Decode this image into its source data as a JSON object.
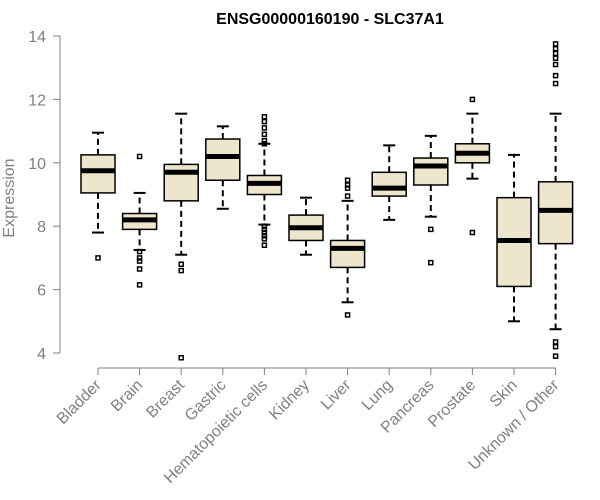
{
  "chart_data": {
    "type": "boxplot",
    "title": "ENSG00000160190 - SLC37A1",
    "xlabel": "",
    "ylabel": "Expression",
    "ylim": [
      3.7,
      14.2
    ],
    "yticks": [
      4,
      6,
      8,
      10,
      12,
      14
    ],
    "categories": [
      "Bladder",
      "Brain",
      "Breast",
      "Gastric",
      "Hematopoietic cells",
      "Kidney",
      "Liver",
      "Lung",
      "Pancreas",
      "Prostate",
      "Skin",
      "Unknown / Other"
    ],
    "series": [
      {
        "name": "Bladder",
        "q1": 9.05,
        "median": 9.75,
        "q3": 10.25,
        "whisker_low": 7.8,
        "whisker_high": 10.95,
        "outliers": [
          7.0
        ]
      },
      {
        "name": "Brain",
        "q1": 7.9,
        "median": 8.2,
        "q3": 8.4,
        "whisker_low": 7.25,
        "whisker_high": 9.05,
        "outliers": [
          10.2,
          7.2,
          7.0,
          6.9,
          6.65,
          6.15
        ]
      },
      {
        "name": "Breast",
        "q1": 8.8,
        "median": 9.7,
        "q3": 9.95,
        "whisker_low": 7.1,
        "whisker_high": 11.55,
        "outliers": [
          6.8,
          6.6,
          3.85
        ]
      },
      {
        "name": "Gastric",
        "q1": 9.45,
        "median": 10.2,
        "q3": 10.75,
        "whisker_low": 8.55,
        "whisker_high": 11.15,
        "outliers": []
      },
      {
        "name": "Hematopoietic cells",
        "q1": 9.0,
        "median": 9.35,
        "q3": 9.6,
        "whisker_low": 8.05,
        "whisker_high": 10.6,
        "outliers": [
          11.45,
          11.3,
          11.1,
          10.9,
          10.7,
          10.6,
          8.0,
          7.9,
          7.8,
          7.7,
          7.6,
          7.4
        ]
      },
      {
        "name": "Kidney",
        "q1": 7.55,
        "median": 7.95,
        "q3": 8.35,
        "whisker_low": 7.1,
        "whisker_high": 8.9,
        "outliers": []
      },
      {
        "name": "Liver",
        "q1": 6.7,
        "median": 7.3,
        "q3": 7.55,
        "whisker_low": 5.6,
        "whisker_high": 8.8,
        "outliers": [
          9.45,
          9.3,
          9.2,
          8.95,
          5.2
        ]
      },
      {
        "name": "Lung",
        "q1": 8.95,
        "median": 9.2,
        "q3": 9.7,
        "whisker_low": 8.2,
        "whisker_high": 10.55,
        "outliers": []
      },
      {
        "name": "Pancreas",
        "q1": 9.3,
        "median": 9.9,
        "q3": 10.15,
        "whisker_low": 8.3,
        "whisker_high": 10.85,
        "outliers": [
          7.9,
          6.85
        ]
      },
      {
        "name": "Prostate",
        "q1": 10.0,
        "median": 10.3,
        "q3": 10.6,
        "whisker_low": 9.5,
        "whisker_high": 11.55,
        "outliers": [
          12.0,
          7.8
        ]
      },
      {
        "name": "Skin",
        "q1": 6.1,
        "median": 7.55,
        "q3": 8.9,
        "whisker_low": 5.0,
        "whisker_high": 10.25,
        "outliers": []
      },
      {
        "name": "Unknown / Other",
        "q1": 7.45,
        "median": 8.5,
        "q3": 9.4,
        "whisker_low": 4.75,
        "whisker_high": 11.55,
        "outliers": [
          13.75,
          13.6,
          13.45,
          13.3,
          13.1,
          12.75,
          12.5,
          4.35,
          4.2,
          3.9
        ]
      }
    ]
  }
}
